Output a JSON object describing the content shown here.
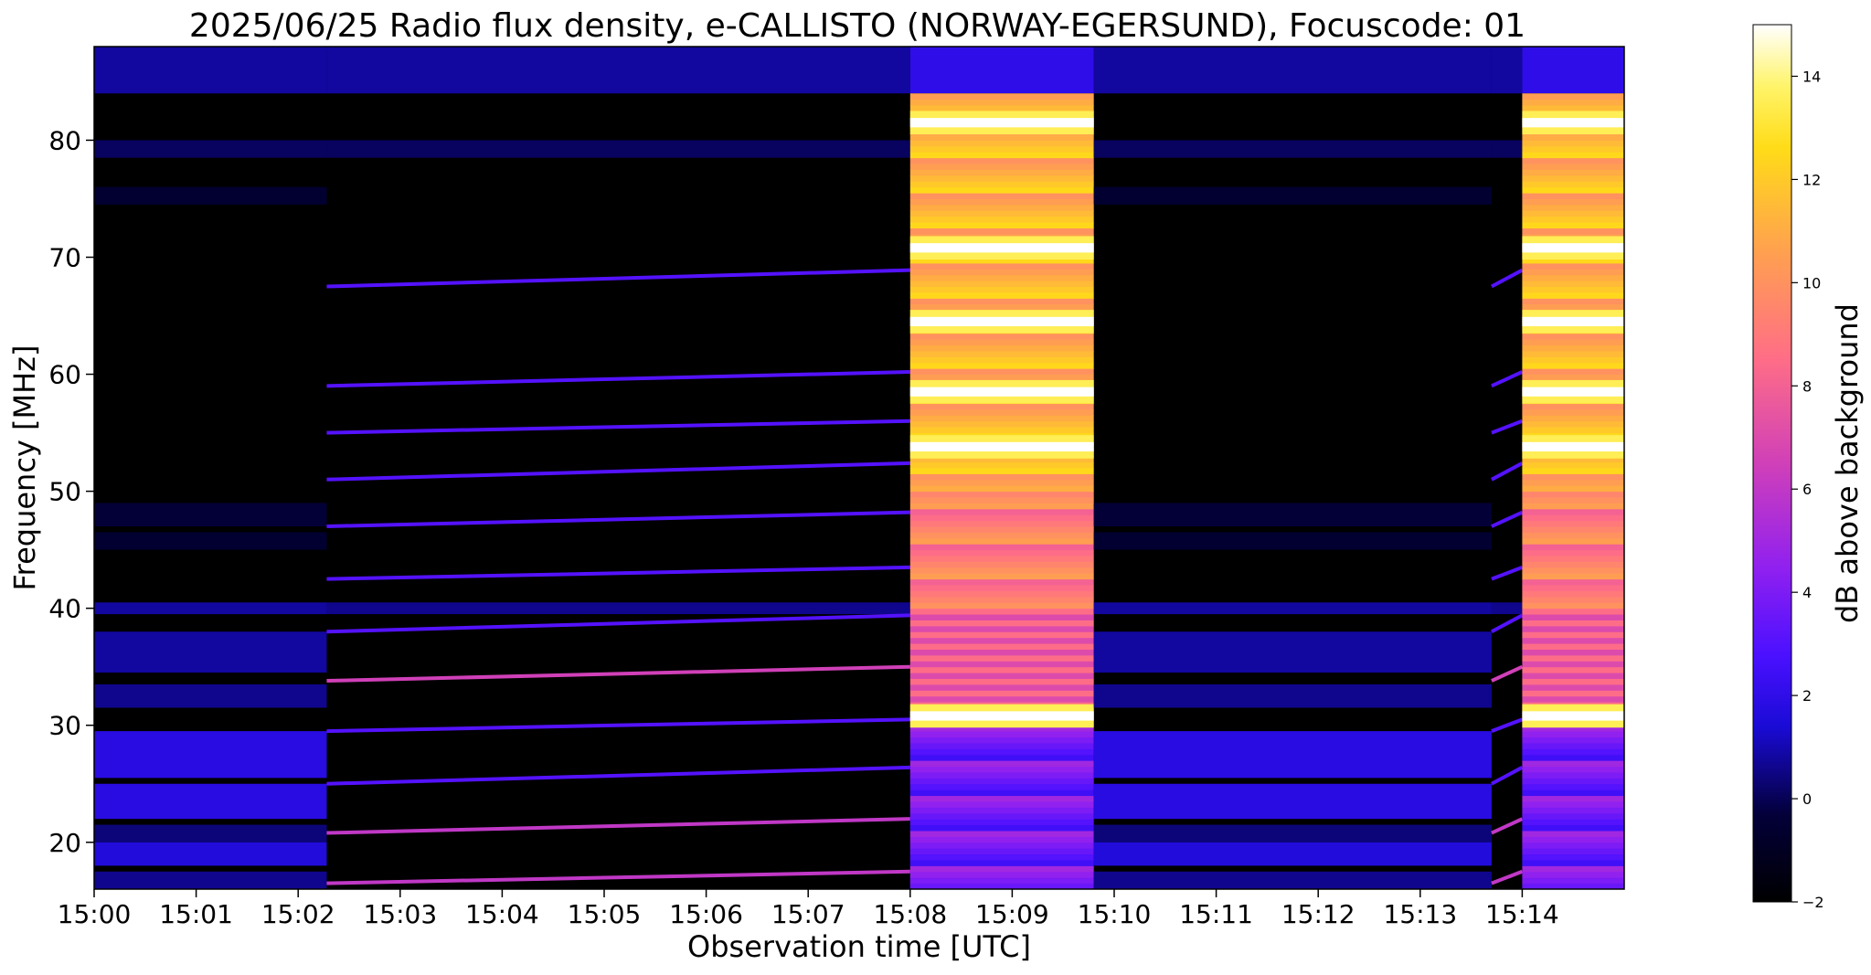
{
  "chart_data": {
    "type": "heatmap",
    "title": "2025/06/25  Radio flux density, e-CALLISTO (NORWAY-EGERSUND), Focuscode: 01",
    "xlabel": "Observation time [UTC]",
    "ylabel": "Frequency [MHz]",
    "colorbar_label": "dB above background",
    "x_ticks": [
      "15:00",
      "15:01",
      "15:02",
      "15:03",
      "15:04",
      "15:05",
      "15:06",
      "15:07",
      "15:08",
      "15:09",
      "15:10",
      "15:11",
      "15:12",
      "15:13",
      "15:14"
    ],
    "x_range_minutes": [
      0,
      15
    ],
    "y_ticks": [
      20,
      30,
      40,
      50,
      60,
      70,
      80
    ],
    "y_range": [
      16,
      88
    ],
    "colorbar_ticks": [
      -2,
      0,
      2,
      4,
      6,
      8,
      10,
      12,
      14
    ],
    "colorbar_range": [
      -2,
      15
    ],
    "colormap": "gnuplot2",
    "grid": false,
    "segments": [
      {
        "t_start": 0.0,
        "t_end": 2.28,
        "state": "background"
      },
      {
        "t_start": 2.28,
        "t_end": 8.0,
        "state": "band-lines"
      },
      {
        "t_start": 8.0,
        "t_end": 9.8,
        "state": "intense"
      },
      {
        "t_start": 9.8,
        "t_end": 13.7,
        "state": "background"
      },
      {
        "t_start": 13.7,
        "t_end": 14.0,
        "state": "band-lines"
      },
      {
        "t_start": 14.0,
        "t_end": 15.0,
        "state": "intense"
      }
    ],
    "bright_bands_mhz": [
      81.5,
      70.8,
      64.5,
      58.5,
      53.8,
      30.8
    ],
    "drifting_lines_mhz": [
      16.5,
      20.8,
      25.0,
      29.5,
      33.8,
      38.0,
      42.5,
      47.0,
      51.0,
      55.0,
      59.0,
      67.5
    ]
  }
}
